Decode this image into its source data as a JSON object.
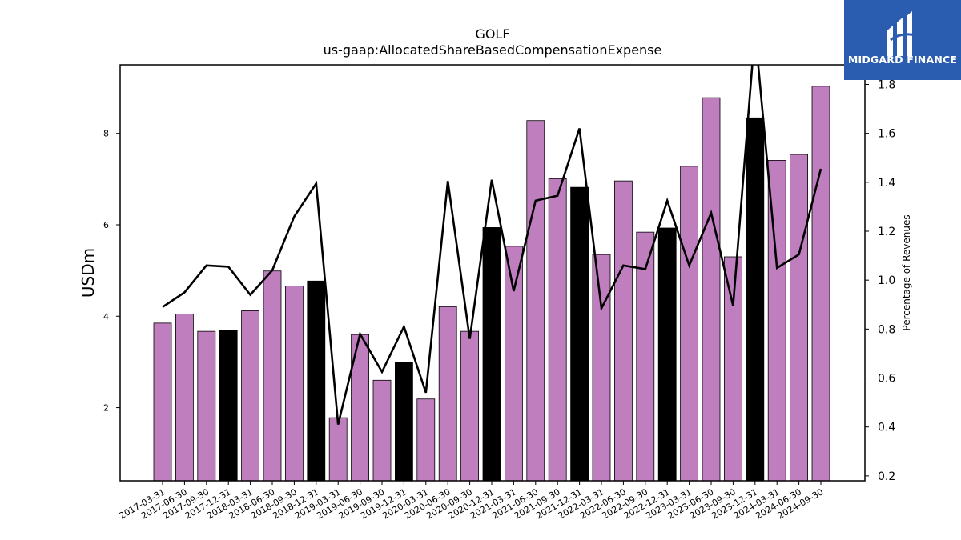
{
  "chart_data": {
    "type": "bar",
    "title": "GOLF",
    "subtitle": "us-gaap:AllocatedShareBasedCompensationExpense",
    "ylabel": "USDm",
    "y2label": "Percentage of Revenues",
    "ylim": [
      0.4,
      9.5
    ],
    "y2lim": [
      0.18,
      1.88
    ],
    "yticks": [
      2,
      4,
      6,
      8
    ],
    "y2ticks": [
      0.2,
      0.4,
      0.6,
      0.8,
      1.0,
      1.2,
      1.4,
      1.6,
      1.8
    ],
    "categories": [
      "2017-03-31",
      "2017-06-30",
      "2017-09-30",
      "2017-12-31",
      "2018-03-31",
      "2018-06-30",
      "2018-09-30",
      "2018-12-31",
      "2019-03-31",
      "2019-06-30",
      "2019-09-30",
      "2019-12-31",
      "2020-03-31",
      "2020-06-30",
      "2020-09-30",
      "2020-12-31",
      "2021-03-31",
      "2021-06-30",
      "2021-09-30",
      "2021-12-31",
      "2022-03-31",
      "2022-06-30",
      "2022-09-30",
      "2022-12-31",
      "2023-03-31",
      "2023-06-30",
      "2023-09-30",
      "2023-12-31",
      "2024-03-31",
      "2024-06-30",
      "2024-09-30"
    ],
    "series": [
      {
        "type": "bar",
        "values": [
          3.85,
          4.05,
          3.67,
          3.7,
          4.12,
          4.99,
          4.66,
          4.77,
          1.78,
          3.6,
          2.6,
          2.99,
          2.19,
          4.21,
          3.67,
          5.94,
          5.53,
          8.28,
          7.01,
          6.82,
          5.35,
          6.96,
          5.84,
          5.93,
          7.28,
          8.78,
          5.3,
          8.34,
          7.41,
          7.54,
          9.03
        ],
        "colors": {
          "regular": "#bf7fbf",
          "q4": "#000000"
        }
      },
      {
        "type": "line",
        "axis": "right",
        "values": [
          0.89,
          0.95,
          1.06,
          1.055,
          0.94,
          1.04,
          1.26,
          1.395,
          0.41,
          0.78,
          0.625,
          0.81,
          0.54,
          1.405,
          0.76,
          1.41,
          0.955,
          1.325,
          1.345,
          1.62,
          0.885,
          1.06,
          1.045,
          1.325,
          1.06,
          1.275,
          0.895,
          2.02,
          1.05,
          1.105,
          1.455
        ],
        "color": "#000000"
      }
    ],
    "grid": false
  },
  "brand": {
    "name": "MIDGARD FINANCE",
    "background": "#2a5db0"
  }
}
